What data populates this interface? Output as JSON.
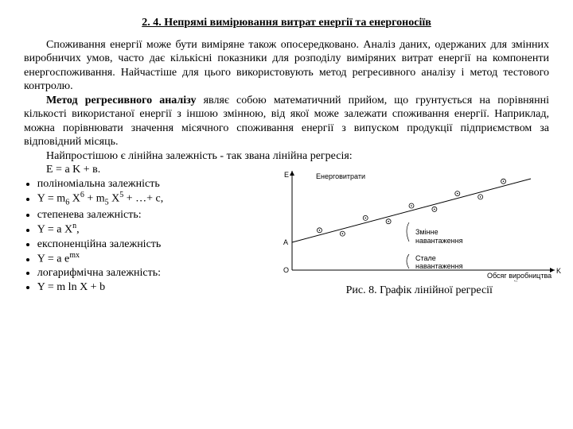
{
  "heading": "2. 4. Непрямі вимірювання витрат енергії та енергоносіїв",
  "p1": "Споживання енергії може бути виміряне також опосередковано. Аналіз даних, одержаних для змінних виробничих умов, часто дає кількісні показники для розподілу виміряних витрат енергії на компоненти енергоспоживання. Найчастіше для цього використовують метод регресивного аналізу і метод тестового контролю.",
  "p2a": "Метод регресивного аналізу",
  "p2b": " являє собою математичний прийом, що грунтується на порівнянні кількості використаної енергії з іншою змінною, від якої може залежати споживання енергії. Наприклад, можна порівнювати значення місячного споживання енергії з випуском продукції підприємством за відповідний місяць.",
  "p3": "Найпростішою є лінійна залежність - так звана лінійна регресія:",
  "p4": "E = a K + в.",
  "b1": "поліноміальна залежність",
  "b3": "степенева залежність:",
  "b5": "експоненційна залежність",
  "b7": "логарифмічна залежність:",
  "caption": "Рис. 8. Графік лінійної регресії",
  "chart": {
    "y_label": "E",
    "x_label": "K",
    "title": "Енерговитрати",
    "a_label": "A",
    "o_label": "O",
    "var_load": "Змінне навантаження",
    "const_load": "Стале навантаження",
    "output": "Обсяг виробництва продукції",
    "axis_color": "#000000",
    "line_color": "#000000",
    "point_count": 9,
    "background": "#ffffff",
    "font_size": 9
  }
}
